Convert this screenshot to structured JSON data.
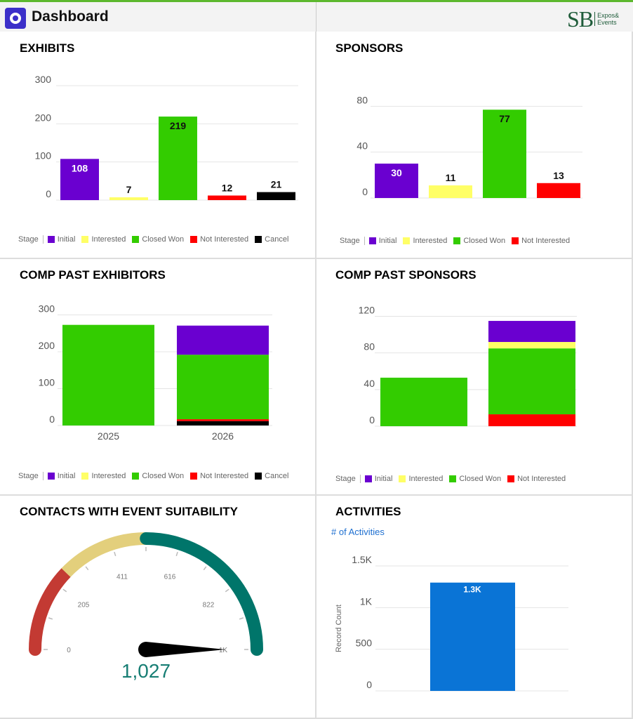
{
  "header": {
    "title": "Dashboard",
    "logo_text": "SB",
    "logo_sub1": "Expos&",
    "logo_sub2": "Events",
    "accent": "#5cb82e"
  },
  "colors": {
    "Initial": "#6a00d0",
    "Interested": "#ffff66",
    "Closed Won": "#33cc00",
    "Not Interested": "#ff0000",
    "Cancel": "#000000"
  },
  "legend_label": "Stage",
  "chart_data": [
    {
      "id": "exhibits",
      "title": "EXHIBITS",
      "type": "bar",
      "categories": [
        "Initial",
        "Interested",
        "Closed Won",
        "Not Interested",
        "Cancel"
      ],
      "values": [
        108,
        7,
        219,
        12,
        21
      ],
      "yticks": [
        0,
        100,
        200,
        300
      ],
      "ylim": [
        0,
        300
      ],
      "legend": [
        "Initial",
        "Interested",
        "Closed Won",
        "Not Interested",
        "Cancel"
      ],
      "legend_placement": "bottom"
    },
    {
      "id": "sponsors",
      "title": "SPONSORS",
      "type": "bar",
      "categories": [
        "Initial",
        "Interested",
        "Closed Won",
        "Not Interested"
      ],
      "values": [
        30,
        11,
        77,
        13
      ],
      "yticks": [
        0,
        40,
        80
      ],
      "ylim": [
        0,
        90
      ],
      "legend": [
        "Initial",
        "Interested",
        "Closed Won",
        "Not Interested"
      ],
      "legend_placement": "bottom"
    },
    {
      "id": "comp_exhibitors",
      "title": "COMP PAST EXHIBITORS",
      "type": "stacked-bar",
      "categories": [
        "2025",
        "2026"
      ],
      "series": [
        {
          "name": "Cancel",
          "values": [
            0,
            12
          ]
        },
        {
          "name": "Not Interested",
          "values": [
            0,
            5
          ]
        },
        {
          "name": "Closed Won",
          "values": [
            273,
            175
          ]
        },
        {
          "name": "Interested",
          "values": [
            0,
            0
          ]
        },
        {
          "name": "Initial",
          "values": [
            0,
            79
          ]
        }
      ],
      "yticks": [
        0,
        100,
        200,
        300
      ],
      "ylim": [
        0,
        320
      ],
      "legend": [
        "Initial",
        "Interested",
        "Closed Won",
        "Not Interested",
        "Cancel"
      ],
      "legend_placement": "bottom"
    },
    {
      "id": "comp_sponsors",
      "title": "COMP PAST SPONSORS",
      "type": "stacked-bar",
      "categories": [
        "",
        ""
      ],
      "series": [
        {
          "name": "Not Interested",
          "values": [
            0,
            13
          ]
        },
        {
          "name": "Closed Won",
          "values": [
            53,
            72
          ]
        },
        {
          "name": "Interested",
          "values": [
            0,
            7
          ]
        },
        {
          "name": "Initial",
          "values": [
            0,
            23
          ]
        }
      ],
      "yticks": [
        0,
        40,
        80,
        120
      ],
      "ylim": [
        0,
        125
      ],
      "legend": [
        "Initial",
        "Interested",
        "Closed Won",
        "Not Interested"
      ],
      "legend_placement": "bottom"
    },
    {
      "id": "contacts",
      "title": "CONTACTS WITH EVENT SUITABILITY",
      "type": "gauge",
      "value": 1027,
      "value_label": "1,027",
      "min": 0,
      "max": 1027,
      "tick_labels": [
        "0",
        "205",
        "411",
        "616",
        "822",
        "1K"
      ],
      "bands": [
        {
          "to": 250,
          "color": "#c33a33"
        },
        {
          "to": 514,
          "color": "#e3cf7c"
        },
        {
          "to": 1027,
          "color": "#00756a"
        }
      ]
    },
    {
      "id": "activities",
      "title": "ACTIVITIES",
      "subtitle": "# of Activities",
      "type": "bar",
      "categories": [
        ""
      ],
      "values": [
        1300
      ],
      "data_label": "1.3K",
      "yticks": [
        "0",
        "500",
        "1K",
        "1.5K"
      ],
      "ylim": [
        0,
        1500
      ],
      "ylabel": "Record Count",
      "color": "#0a74d6"
    }
  ]
}
